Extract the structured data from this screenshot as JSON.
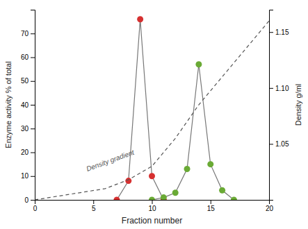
{
  "chart_data": {
    "type": "line",
    "xlabel": "Fraction number",
    "ylabel": "Enzyme activity % of total",
    "y2label": "Density g/ml",
    "xlim": [
      0,
      20
    ],
    "xticks": [
      0,
      5,
      10,
      15,
      20
    ],
    "ylim": [
      0,
      80
    ],
    "yticks": [
      0,
      10,
      20,
      30,
      40,
      50,
      60,
      70
    ],
    "y2lim": [
      1.0,
      1.17
    ],
    "y2ticks": [
      1.05,
      {
        "value": 1.1,
        "label": "1.10"
      },
      1.15
    ],
    "grid": false,
    "series": [
      {
        "color": "#d63030",
        "marker": "circle",
        "line_style": "solid",
        "x": [
          7,
          8,
          9,
          10,
          11
        ],
        "values": [
          0,
          8,
          76,
          10,
          0
        ]
      },
      {
        "color": "#6aaa35",
        "marker": "circle",
        "line_style": "solid",
        "x": [
          10,
          11,
          12,
          13,
          14,
          15,
          16,
          17
        ],
        "values": [
          0,
          1,
          3,
          13,
          57,
          15,
          4,
          0
        ]
      },
      {
        "axis": "y2",
        "color": "#555555",
        "marker": "none",
        "line_style": "dashed",
        "x": [
          0,
          3,
          6,
          8,
          10,
          12,
          14,
          16,
          18,
          20
        ],
        "values": [
          1.0,
          1.005,
          1.01,
          1.018,
          1.03,
          1.055,
          1.085,
          1.11,
          1.135,
          1.16
        ]
      }
    ],
    "annotations": [
      {
        "text": "Density gradient",
        "x": 4.5,
        "y": 12
      }
    ]
  }
}
